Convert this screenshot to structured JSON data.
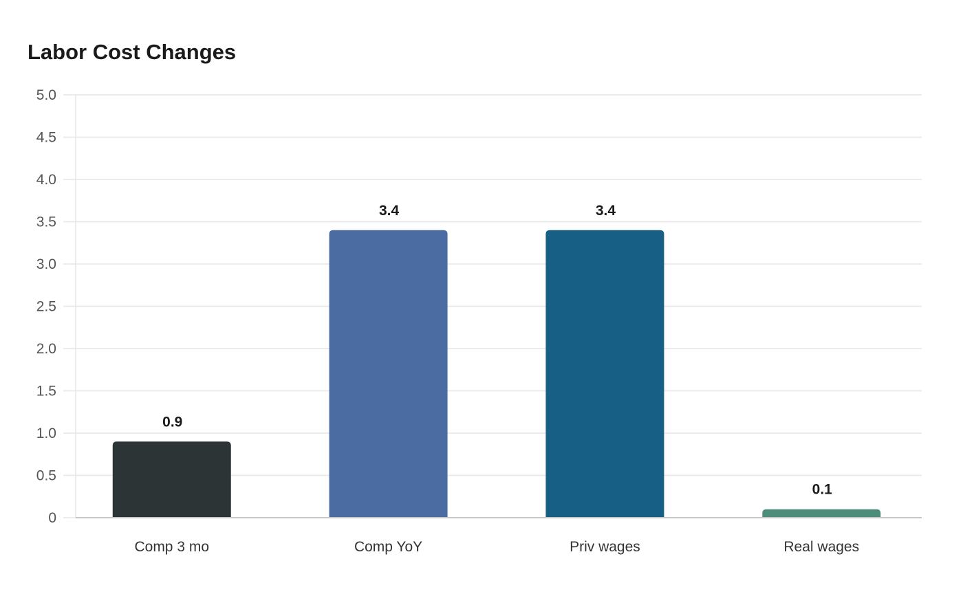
{
  "chart_data": {
    "type": "bar",
    "title": "Labor Cost Changes",
    "xlabel": "",
    "ylabel": "",
    "categories": [
      "Comp 3 mo",
      "Comp YoY",
      "Priv wages",
      "Real wages"
    ],
    "values": [
      0.9,
      3.4,
      3.4,
      0.1
    ],
    "value_labels": [
      "0.9",
      "3.4",
      "3.4",
      "0.1"
    ],
    "colors": [
      "#2d3436",
      "#4a6ca2",
      "#185f86",
      "#4e8d7a"
    ],
    "ylim": [
      0,
      5
    ],
    "yticks": [
      0,
      0.5,
      1,
      1.5,
      2,
      2.5,
      3,
      3.5,
      4,
      4.5,
      5
    ],
    "ytick_labels": [
      "0",
      "0.5",
      "1.0",
      "1.5",
      "2.0",
      "2.5",
      "3.0",
      "3.5",
      "4.0",
      "4.5",
      "5.0"
    ],
    "grid": true,
    "gridline_color": "#e6e6e6",
    "axis_color": "#c8c8c8",
    "legend": "none"
  }
}
